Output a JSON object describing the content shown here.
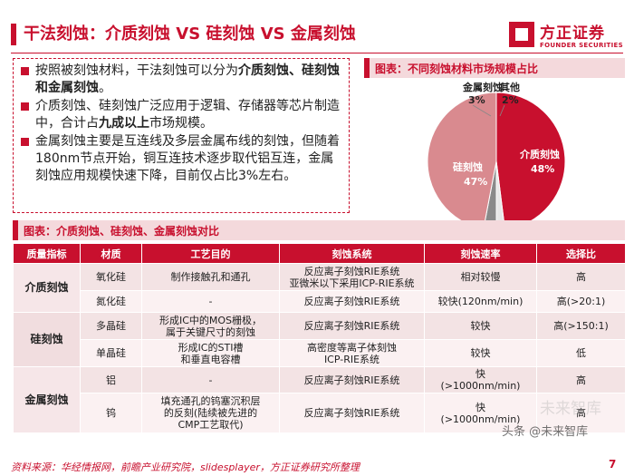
{
  "header": {
    "title": "干法刻蚀：介质刻蚀 VS 硅刻蚀 VS 金属刻蚀",
    "logo_cn": "方正证券",
    "logo_en": "FOUNDER SECURITIES"
  },
  "bullets": [
    {
      "parts": [
        {
          "t": "按照被刻蚀材料，干法刻蚀可以分为"
        },
        {
          "t": "介质刻蚀、硅刻蚀和金属刻蚀",
          "b": true
        },
        {
          "t": "。"
        }
      ]
    },
    {
      "parts": [
        {
          "t": "介质刻蚀、硅刻蚀广泛应用于逻辑、存储器等芯片制造中，合计占"
        },
        {
          "t": "九成以上",
          "b": true
        },
        {
          "t": "市场规模。"
        }
      ]
    },
    {
      "parts": [
        {
          "t": "金属刻蚀主要是互连线及多层金属布线的刻蚀，但随着180nm节点开始，铜互连技术逐步取代铝互连，金属刻蚀应用规模快速下降，目前仅占比3%左右。"
        }
      ]
    }
  ],
  "pie_section": {
    "label": "图表：不同刻蚀材料市场规模占比"
  },
  "chart_data": {
    "type": "pie",
    "title": "",
    "slices": [
      {
        "name": "介质刻蚀",
        "value": 48,
        "label": "48%",
        "color": "#c8102e"
      },
      {
        "name": "其他",
        "value": 2,
        "label": "2%",
        "color": "#e8e8e8"
      },
      {
        "name": "金属刻蚀",
        "value": 3,
        "label": "3%",
        "color": "#8a8a8a"
      },
      {
        "name": "硅刻蚀",
        "value": 47,
        "label": "47%",
        "color": "#d98a8f"
      }
    ]
  },
  "table_section": {
    "label": "图表：介质刻蚀、硅刻蚀、金属刻蚀对比"
  },
  "table": {
    "headers": [
      "质量指标",
      "材质",
      "工艺目的",
      "刻蚀系统",
      "刻蚀速率",
      "选择比"
    ],
    "groups": [
      {
        "name": "介质刻蚀",
        "rows": [
          {
            "material": "氧化硅",
            "purpose": "制作接触孔和通孔",
            "system": "反应离子刻蚀RIE系统\n亚微米以下采用ICP-RIE系统",
            "rate": "相对较慢",
            "ratio": "高"
          },
          {
            "material": "氮化硅",
            "purpose": "-",
            "system": "反应离子刻蚀RIE系统",
            "rate": "较快(120nm/min)",
            "ratio": "高(>20:1)"
          }
        ]
      },
      {
        "name": "硅刻蚀",
        "rows": [
          {
            "material": "多晶硅",
            "purpose": "形成IC中的MOS栅极，\n属于关键尺寸的刻蚀",
            "system": "反应离子刻蚀RIE系统",
            "rate": "较快",
            "ratio": "高(>150:1)"
          },
          {
            "material": "单晶硅",
            "purpose": "形成IC的STI槽\n和垂直电容槽",
            "system": "高密度等离子体刻蚀\nICP-RIE系统",
            "rate": "较快",
            "ratio": "低"
          }
        ]
      },
      {
        "name": "金属刻蚀",
        "rows": [
          {
            "material": "铝",
            "purpose": "-",
            "system": "反应离子刻蚀RIE系统",
            "rate": "快\n(>1000nm/min)",
            "ratio": "高"
          },
          {
            "material": "钨",
            "purpose": "填充通孔的钨塞沉积层\n的反刻(陆续被先进的\nCMP工艺取代)",
            "system": "反应离子刻蚀RIE系统",
            "rate": "快\n(>1000nm/min)",
            "ratio": "高"
          }
        ]
      }
    ]
  },
  "footer": {
    "source": "资料来源：华经情报网，前瞻产业研究院，slidesplayer，方正证券研究所整理",
    "page": "7",
    "watermark": "头条 @未来智库",
    "watermark_ghost": "未来智库"
  },
  "colors": {
    "brand": "#c8102e",
    "header_bg": "#f4d9dc"
  }
}
